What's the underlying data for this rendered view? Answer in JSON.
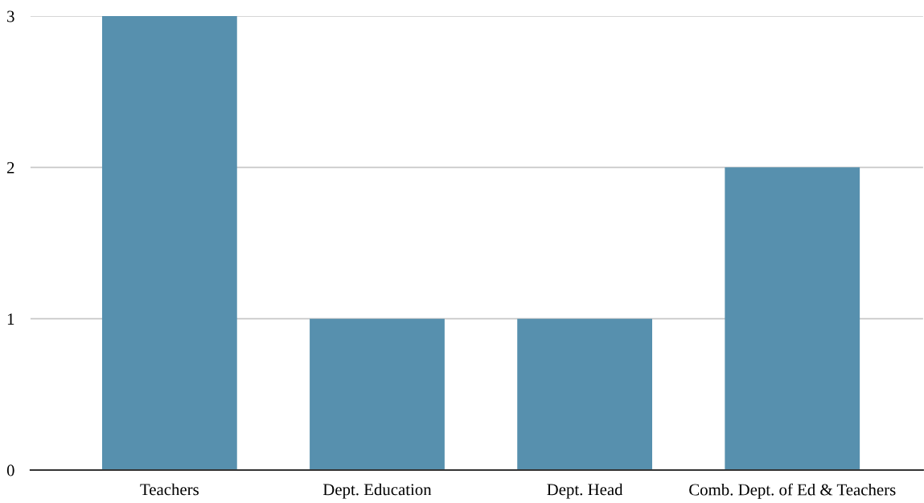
{
  "chart_data": {
    "type": "bar",
    "categories": [
      "Teachers",
      "Dept. Education",
      "Dept. Head",
      "Comb. Dept. of Ed & Teachers"
    ],
    "values": [
      3,
      1,
      1,
      2
    ],
    "color": "#5790ae",
    "ylim": [
      0,
      3
    ],
    "yticks": [
      0,
      1,
      2,
      3
    ],
    "grid": "y",
    "legend": false
  }
}
